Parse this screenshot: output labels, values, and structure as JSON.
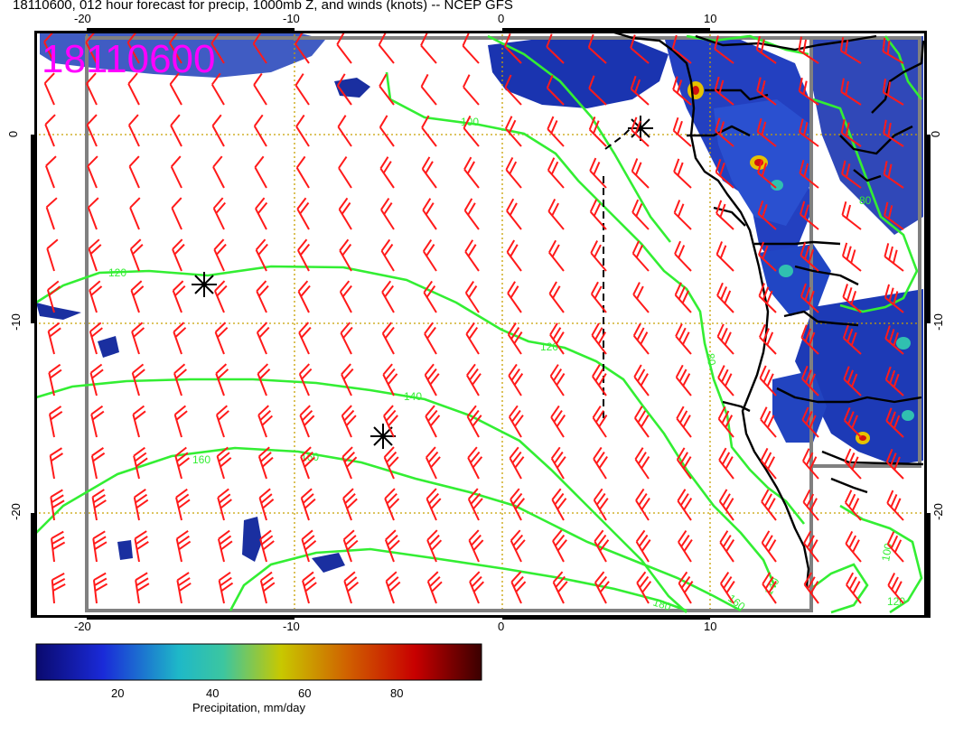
{
  "title": "18110600, 012 hour forecast for precip, 1000mb Z, and winds (knots) -- NCEP GFS",
  "stamp": "18110600",
  "colors": {
    "stamp": "#ff00ff",
    "contour": "#33ee33",
    "barb": "#ff1a1a",
    "gridline": "#c8a000",
    "frame": "#808080",
    "coast": "#000000"
  },
  "axes": {
    "top_ticks": [
      "-20",
      "-10",
      "0",
      "10"
    ],
    "bottom_ticks": [
      "-20",
      "-10",
      "0",
      "10"
    ],
    "left_ticks": [
      "0",
      "-10",
      "-20"
    ],
    "right_ticks": [
      "0",
      "-10",
      "-20"
    ]
  },
  "colorbar": {
    "ticks": [
      "20",
      "40",
      "60",
      "80"
    ],
    "label": "Precipitation, mm/day"
  },
  "contour_labels": [
    "100",
    "120",
    "120",
    "140",
    "160",
    "160",
    "180",
    "160",
    "140",
    "100",
    "120",
    "80",
    "80"
  ]
}
